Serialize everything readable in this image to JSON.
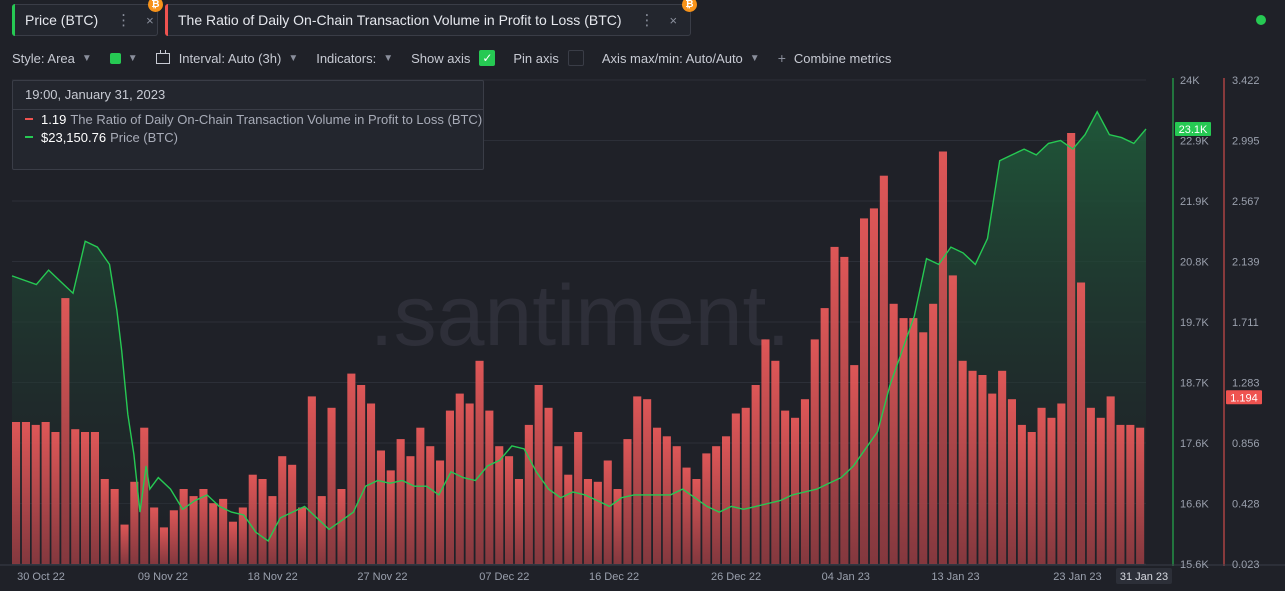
{
  "tabs": [
    {
      "label": "Price (BTC)",
      "dots": "⋮",
      "close": "×",
      "badge": "₿",
      "color": "#26c953"
    },
    {
      "label": "The Ratio of Daily On-Chain Transaction Volume in Profit to Loss (BTC)",
      "dots": "⋮",
      "close": "×",
      "badge": "₿",
      "color": "#ef5350"
    }
  ],
  "toolbar": {
    "style": "Style: Area",
    "interval": "Interval: Auto (3h)",
    "indicators": "Indicators:",
    "show_axis": "Show axis",
    "pin_axis": "Pin axis",
    "axis_maxmin": "Axis max/min: Auto/Auto",
    "combine": "Combine metrics"
  },
  "tooltip": {
    "date": "19:00, January 31, 2023",
    "rows": [
      {
        "value": "1.19",
        "name": "The Ratio of Daily On-Chain Transaction Volume in Profit to Loss (BTC)",
        "color": "#ef5350"
      },
      {
        "value": "$23,150.76",
        "name": "Price (BTC)",
        "color": "#26c953"
      }
    ]
  },
  "watermark": ".santiment.",
  "colors": {
    "price": "#26c953",
    "ratio": "#ef5350",
    "background": "#1f2128",
    "grid": "#2c2f38"
  },
  "chart_data": {
    "type": "area",
    "x_tick_labels": [
      "30 Oct 22",
      "09 Nov 22",
      "18 Nov 22",
      "27 Nov 22",
      "07 Dec 22",
      "16 Dec 22",
      "26 Dec 22",
      "04 Jan 23",
      "13 Jan 23",
      "23 Jan 23"
    ],
    "x_tick_days": [
      0,
      10,
      19,
      28,
      38,
      47,
      57,
      66,
      75,
      85
    ],
    "x_highlight_label": "31 Jan 23",
    "x_highlight_day": 93,
    "price_axis": {
      "ticks": [
        "24K",
        "22.9K",
        "21.9K",
        "20.8K",
        "19.7K",
        "18.7K",
        "17.6K",
        "16.6K",
        "15.6K"
      ],
      "min": 15600,
      "max": 24000,
      "current_label": "23.1K",
      "current": 23150
    },
    "ratio_axis": {
      "ticks": [
        "3.422",
        "2.995",
        "2.567",
        "2.139",
        "1.711",
        "1.283",
        "0.856",
        "0.428",
        "0.023"
      ],
      "min": 0.023,
      "max": 3.422,
      "current_label": "1.194",
      "current": 1.194
    },
    "series": [
      {
        "name": "Price (BTC)",
        "style": "area",
        "points": [
          [
            0,
            20600
          ],
          [
            2,
            20450
          ],
          [
            3,
            20700
          ],
          [
            4,
            20500
          ],
          [
            5,
            20300
          ],
          [
            6,
            21200
          ],
          [
            7,
            21100
          ],
          [
            8,
            20800
          ],
          [
            8.6,
            20000
          ],
          [
            9,
            19300
          ],
          [
            9.5,
            18200
          ],
          [
            10,
            17500
          ],
          [
            10.5,
            16500
          ],
          [
            11,
            17300
          ],
          [
            11.3,
            16900
          ],
          [
            12,
            17100
          ],
          [
            13,
            16900
          ],
          [
            14,
            16550
          ],
          [
            15,
            16700
          ],
          [
            16,
            16800
          ],
          [
            17,
            16600
          ],
          [
            18,
            16500
          ],
          [
            19,
            16450
          ],
          [
            20,
            16150
          ],
          [
            21,
            16000
          ],
          [
            22,
            16400
          ],
          [
            23,
            16500
          ],
          [
            24,
            16600
          ],
          [
            25,
            16400
          ],
          [
            26,
            16200
          ],
          [
            27,
            16350
          ],
          [
            28,
            16500
          ],
          [
            29,
            16950
          ],
          [
            30,
            17050
          ],
          [
            31,
            17000
          ],
          [
            32,
            17050
          ],
          [
            33,
            16950
          ],
          [
            34,
            16950
          ],
          [
            35,
            16800
          ],
          [
            36,
            17200
          ],
          [
            37,
            17100
          ],
          [
            38,
            17050
          ],
          [
            39,
            17300
          ],
          [
            40,
            17400
          ],
          [
            41,
            17650
          ],
          [
            42,
            17600
          ],
          [
            43,
            17200
          ],
          [
            44,
            16900
          ],
          [
            45,
            16750
          ],
          [
            46,
            16850
          ],
          [
            47,
            16800
          ],
          [
            48,
            16700
          ],
          [
            49,
            16600
          ],
          [
            50,
            16750
          ],
          [
            51,
            16800
          ],
          [
            52,
            16800
          ],
          [
            53,
            16800
          ],
          [
            54,
            16800
          ],
          [
            55,
            16900
          ],
          [
            56,
            16750
          ],
          [
            57,
            16600
          ],
          [
            58,
            16500
          ],
          [
            59,
            16600
          ],
          [
            60,
            16550
          ],
          [
            61,
            16600
          ],
          [
            62,
            16650
          ],
          [
            63,
            16700
          ],
          [
            64,
            16800
          ],
          [
            65,
            16850
          ],
          [
            66,
            16900
          ],
          [
            67,
            17000
          ],
          [
            68,
            17100
          ],
          [
            69,
            17300
          ],
          [
            70,
            17600
          ],
          [
            71,
            17900
          ],
          [
            72,
            18700
          ],
          [
            73,
            19300
          ],
          [
            74,
            19900
          ],
          [
            75,
            20900
          ],
          [
            76,
            20800
          ],
          [
            77,
            21100
          ],
          [
            78,
            21000
          ],
          [
            79,
            20800
          ],
          [
            80,
            21250
          ],
          [
            81,
            22600
          ],
          [
            82,
            22700
          ],
          [
            83,
            22800
          ],
          [
            84,
            22700
          ],
          [
            85,
            22900
          ],
          [
            86,
            22950
          ],
          [
            87,
            22800
          ],
          [
            88,
            23050
          ],
          [
            89,
            23450
          ],
          [
            90,
            23050
          ],
          [
            91,
            23000
          ],
          [
            92,
            22900
          ],
          [
            93,
            23150
          ]
        ]
      },
      {
        "name": "The Ratio of Daily On-Chain Transaction Volume in Profit to Loss (BTC)",
        "style": "bar",
        "values": [
          1.02,
          1.02,
          1.0,
          1.02,
          0.95,
          1.89,
          0.97,
          0.95,
          0.95,
          0.62,
          0.55,
          0.3,
          0.6,
          0.98,
          0.42,
          0.28,
          0.4,
          0.55,
          0.5,
          0.55,
          0.45,
          0.48,
          0.32,
          0.42,
          0.65,
          0.62,
          0.5,
          0.78,
          0.72,
          0.42,
          1.2,
          0.5,
          1.12,
          0.55,
          1.36,
          1.28,
          1.15,
          0.82,
          0.68,
          0.9,
          0.78,
          0.98,
          0.85,
          0.75,
          1.1,
          1.22,
          1.15,
          1.45,
          1.1,
          0.85,
          0.78,
          0.62,
          1.0,
          1.28,
          1.12,
          0.85,
          0.65,
          0.95,
          0.62,
          0.6,
          0.75,
          0.55,
          0.9,
          1.2,
          1.18,
          0.98,
          0.92,
          0.85,
          0.7,
          0.62,
          0.8,
          0.85,
          0.92,
          1.08,
          1.12,
          1.28,
          1.6,
          1.45,
          1.1,
          1.05,
          1.18,
          1.6,
          1.82,
          2.25,
          2.18,
          1.42,
          2.45,
          2.52,
          2.75,
          1.85,
          1.75,
          1.75,
          1.65,
          1.85,
          2.92,
          2.05,
          1.45,
          1.38,
          1.35,
          1.22,
          1.38,
          1.18,
          1.0,
          0.95,
          1.12,
          1.05,
          1.15,
          3.05,
          2.0,
          1.12,
          1.05,
          1.2,
          1.0,
          1.0,
          0.98
        ]
      }
    ],
    "grid": true,
    "legend": "tooltip top-left"
  }
}
